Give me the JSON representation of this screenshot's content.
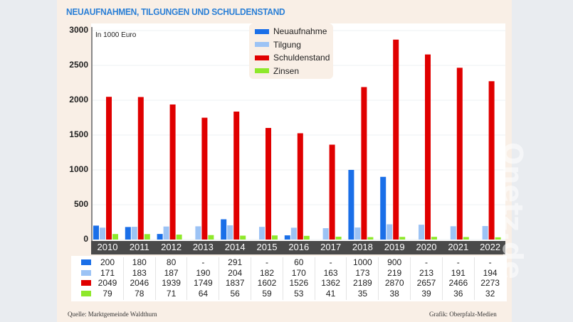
{
  "chart_data": {
    "type": "bar",
    "title": "NEUAUFNAHMEN, TILGUNGEN UND SCHULDENSTAND",
    "ylabel": "In 1000 Euro",
    "ylim": [
      0,
      3000
    ],
    "yticks": [
      "0",
      "500",
      "1000",
      "1500",
      "2000",
      "2500",
      "3000"
    ],
    "grid": true,
    "legend": "top-center",
    "categories": [
      "2010",
      "2011",
      "2012",
      "2013",
      "2014",
      "2015",
      "2016",
      "2017",
      "2018",
      "2019",
      "2020",
      "2021",
      "2022"
    ],
    "series": [
      {
        "name": "Neuaufnahme",
        "color": "#1a6fe8",
        "values": [
          200,
          180,
          80,
          null,
          291,
          null,
          60,
          null,
          1000,
          900,
          null,
          null,
          null
        ],
        "labels": [
          "200",
          "180",
          "80",
          "-",
          "291",
          "-",
          "60",
          "-",
          "1000",
          "900",
          "-",
          "-",
          "-"
        ]
      },
      {
        "name": "Tilgung",
        "color": "#9cc3f5",
        "values": [
          171,
          183,
          187,
          190,
          204,
          182,
          170,
          163,
          173,
          219,
          213,
          191,
          194
        ],
        "labels": [
          "171",
          "183",
          "187",
          "190",
          "204",
          "182",
          "170",
          "163",
          "173",
          "219",
          "213",
          "191",
          "194"
        ]
      },
      {
        "name": "Schuldenstand",
        "color": "#e00000",
        "values": [
          2049,
          2046,
          1939,
          1749,
          1837,
          1602,
          1526,
          1362,
          2189,
          2870,
          2657,
          2466,
          2273
        ],
        "labels": [
          "2049",
          "2046",
          "1939",
          "1749",
          "1837",
          "1602",
          "1526",
          "1362",
          "2189",
          "2870",
          "2657",
          "2466",
          "2273"
        ]
      },
      {
        "name": "Zinsen",
        "color": "#8ee82a",
        "values": [
          79,
          78,
          71,
          64,
          56,
          59,
          53,
          41,
          35,
          38,
          39,
          36,
          32
        ],
        "labels": [
          "79",
          "78",
          "71",
          "64",
          "56",
          "59",
          "53",
          "41",
          "35",
          "38",
          "39",
          "36",
          "32"
        ]
      }
    ]
  },
  "footer": {
    "source": "Quelle: Marktgemeinde Waldthurn",
    "credit": "Grafik: Oberpfalz-Medien"
  },
  "watermark": "Onetz.de"
}
